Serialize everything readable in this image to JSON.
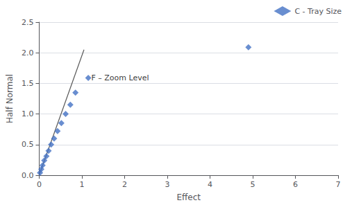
{
  "chart_data": {
    "type": "scatter",
    "xlabel": "Effect",
    "ylabel": "Half Normal",
    "series": [
      {
        "name": "C - Tray Size",
        "type": "scatter",
        "color": "#4472C4",
        "marker": "diamond",
        "x": [
          0.02,
          0.05,
          0.08,
          0.12,
          0.17,
          0.22,
          0.28,
          0.35,
          0.43,
          0.52,
          0.62,
          0.73,
          0.85,
          1.15,
          4.9
        ],
        "values": [
          0.04,
          0.1,
          0.16,
          0.24,
          0.31,
          0.4,
          0.5,
          0.6,
          0.72,
          0.85,
          1.0,
          1.15,
          1.35,
          1.59,
          2.09
        ]
      },
      {
        "type": "line",
        "color": "#595959",
        "x": [
          0.0,
          1.05
        ],
        "values": [
          0.0,
          2.05
        ]
      }
    ],
    "annotations": [
      {
        "text": "F – Zoom Level",
        "x": 1.22,
        "y": 1.59
      }
    ],
    "xlim": [
      0,
      7
    ],
    "ylim": [
      0,
      2.5
    ],
    "xticks": [
      0,
      1,
      2,
      3,
      4,
      5,
      6,
      7
    ],
    "yticks": [
      {
        "value": 0,
        "label": "0.0"
      },
      0.5,
      {
        "value": 1.0,
        "label": "1.0"
      },
      1.5,
      {
        "value": 2.0,
        "label": "2.0"
      },
      2.5
    ],
    "grid": "y",
    "legend": "upper right"
  }
}
